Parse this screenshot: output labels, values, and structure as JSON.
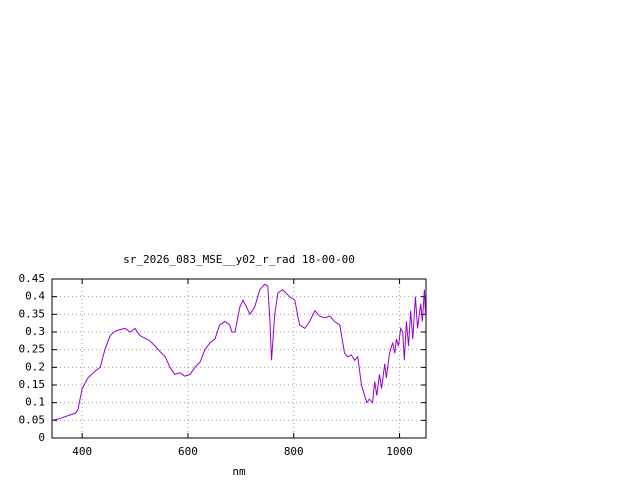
{
  "chart_data": {
    "type": "line",
    "title": "sr_2026_083_MSE__y02_r_rad 18-00-00",
    "x_label": "nm",
    "xlim": [
      343,
      1050
    ],
    "ylim": [
      0,
      0.45
    ],
    "xticks": [
      400,
      600,
      800,
      1000
    ],
    "yticks": [
      0,
      0.05,
      0.1,
      0.15,
      0.2,
      0.25,
      0.3,
      0.35,
      0.4,
      0.45
    ],
    "grid": true,
    "series": [
      {
        "color": "#9400d3",
        "x": [
          343,
          358,
          377,
          387,
          392,
          396,
          400,
          411,
          425,
          434,
          443,
          453,
          462,
          472,
          481,
          491,
          500,
          509,
          528,
          538,
          547,
          557,
          566,
          575,
          585,
          594,
          604,
          613,
          623,
          632,
          642,
          651,
          660,
          670,
          679,
          683,
          689,
          698,
          704,
          711,
          717,
          726,
          736,
          745,
          751,
          755,
          758,
          764,
          770,
          779,
          792,
          802,
          811,
          821,
          830,
          840,
          849,
          858,
          868,
          877,
          887,
          896,
          902,
          909,
          915,
          921,
          928,
          938,
          943,
          949,
          953,
          957,
          962,
          966,
          972,
          975,
          981,
          987,
          991,
          994,
          998,
          1002,
          1006,
          1009,
          1013,
          1017,
          1021,
          1025,
          1030,
          1034,
          1040,
          1043,
          1047,
          1049
        ],
        "values": [
          0.05,
          0.055,
          0.065,
          0.07,
          0.08,
          0.11,
          0.14,
          0.17,
          0.19,
          0.2,
          0.25,
          0.29,
          0.302,
          0.307,
          0.31,
          0.3,
          0.31,
          0.29,
          0.275,
          0.26,
          0.245,
          0.23,
          0.2,
          0.18,
          0.185,
          0.175,
          0.18,
          0.2,
          0.215,
          0.25,
          0.27,
          0.28,
          0.32,
          0.33,
          0.32,
          0.3,
          0.3,
          0.37,
          0.39,
          0.37,
          0.35,
          0.37,
          0.42,
          0.435,
          0.43,
          0.33,
          0.22,
          0.35,
          0.41,
          0.42,
          0.4,
          0.39,
          0.32,
          0.31,
          0.33,
          0.36,
          0.345,
          0.34,
          0.345,
          0.33,
          0.32,
          0.24,
          0.23,
          0.235,
          0.22,
          0.23,
          0.15,
          0.1,
          0.11,
          0.1,
          0.16,
          0.12,
          0.18,
          0.14,
          0.21,
          0.17,
          0.24,
          0.27,
          0.24,
          0.28,
          0.26,
          0.31,
          0.3,
          0.22,
          0.33,
          0.26,
          0.36,
          0.28,
          0.4,
          0.31,
          0.38,
          0.33,
          0.42,
          0.35
        ]
      }
    ]
  }
}
